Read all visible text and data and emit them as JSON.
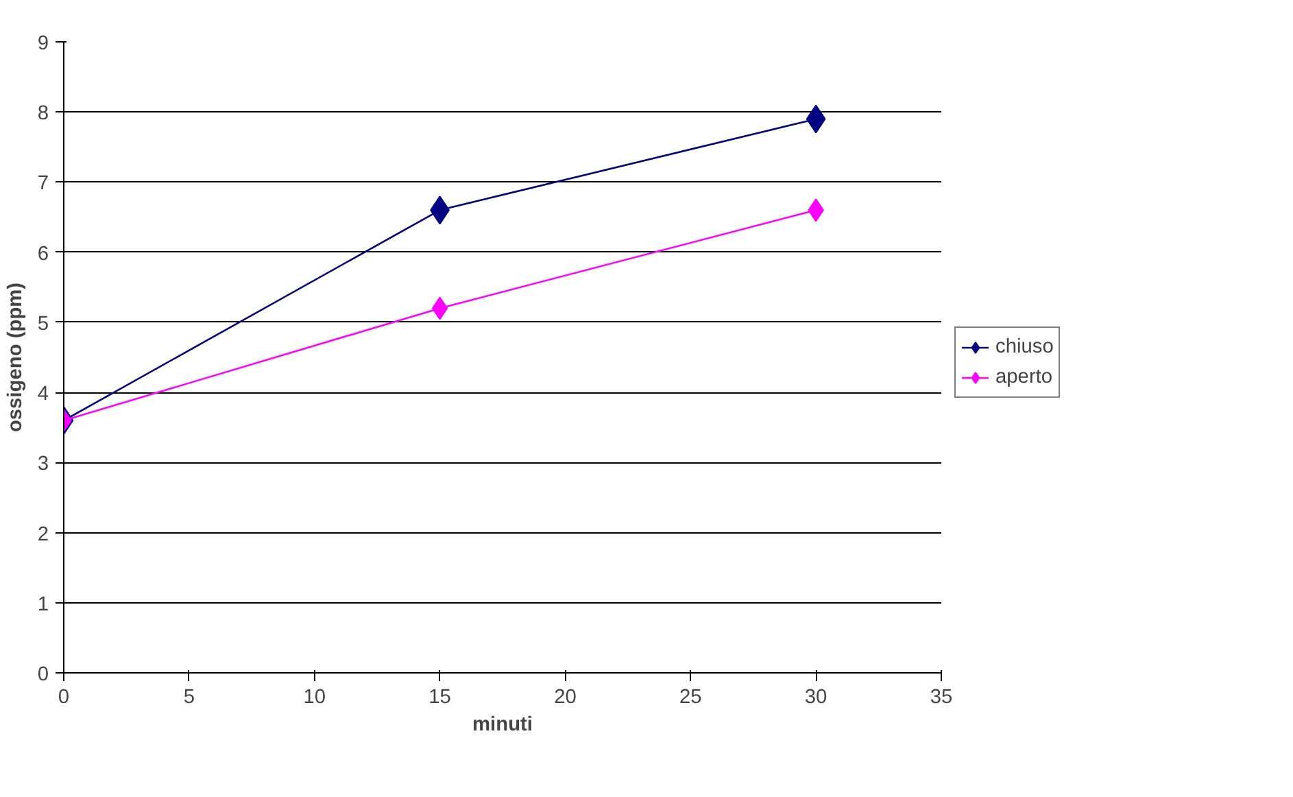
{
  "chart_data": {
    "type": "line",
    "xlabel": "minuti",
    "ylabel": "ossigeno (ppm)",
    "x": [
      0,
      15,
      30
    ],
    "series": [
      {
        "name": "chiuso",
        "color": "#000080",
        "values": [
          3.6,
          6.6,
          7.9
        ]
      },
      {
        "name": "aperto",
        "color": "#ff00ff",
        "values": [
          3.6,
          5.2,
          6.6
        ]
      }
    ],
    "xlim": [
      0,
      35
    ],
    "xticks": [
      0,
      5,
      10,
      15,
      20,
      25,
      30,
      35
    ],
    "ylim": [
      0,
      9
    ],
    "yticks": [
      0,
      1,
      2,
      3,
      4,
      5,
      6,
      7,
      8,
      9
    ],
    "grid": "y",
    "legend": "right",
    "marker": "diamond",
    "line_style": "solid"
  }
}
